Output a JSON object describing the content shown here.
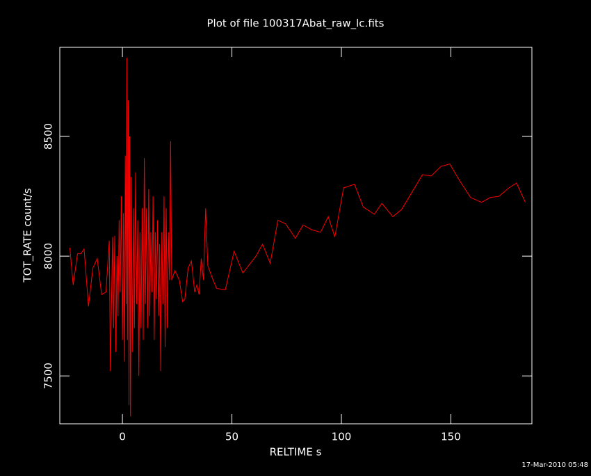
{
  "chart_data": {
    "type": "line",
    "title": "Plot of file 100317Abat_raw_lc.fits",
    "x_label": "RELTIME  s",
    "y_label": "TOT_RATE  count/s",
    "footer": "17-Mar-2010 05:48",
    "background": "#000000",
    "axis_color": "#ffffff",
    "xlim": [
      -28.6,
      187
    ],
    "ylim": [
      7300,
      8872
    ],
    "xticks": [
      0,
      50,
      100,
      150
    ],
    "yticks": [
      7500,
      8000,
      8500
    ],
    "series": [
      {
        "color": "#ff0000",
        "x": [
          -24,
          -22.5,
          -20.5,
          -19,
          -17.5,
          -15.5,
          -13.5,
          -11.5,
          -9.5,
          -7.5,
          -6,
          -5.5,
          -4.5,
          -4,
          -3.5,
          -3,
          -2.5,
          -2,
          -1.5,
          -1,
          -0.5,
          0,
          0.5,
          1,
          1.3,
          1.7,
          2,
          2.3,
          2.7,
          3,
          3.3,
          3.7,
          4,
          4.5,
          5,
          5.5,
          6,
          6.5,
          7,
          7.5,
          8,
          8.5,
          9,
          9.5,
          10,
          10.5,
          11,
          11.5,
          12,
          12.5,
          13,
          13.5,
          14,
          14.5,
          15,
          15.5,
          16,
          16.5,
          17,
          17.5,
          18,
          18.5,
          19,
          19.5,
          20,
          20.5,
          21,
          21.5,
          22,
          22.5,
          24,
          26,
          27.5,
          28.5,
          30,
          31.5,
          33,
          34,
          35,
          36,
          37,
          38,
          39,
          41,
          43,
          47,
          51,
          55,
          61,
          64,
          67.5,
          71,
          74.5,
          79,
          82.5,
          86.5,
          90.5,
          94,
          97,
          101,
          106,
          110,
          115,
          118.5,
          123.5,
          127.5,
          137,
          141,
          145.5,
          149.5,
          154,
          159,
          164,
          168,
          172,
          176.5,
          180,
          184
        ],
        "values": [
          8035,
          7880,
          8010,
          8010,
          8030,
          7790,
          7950,
          7990,
          7840,
          7850,
          8065,
          7520,
          8080,
          7700,
          8085,
          7600,
          8000,
          7750,
          8150,
          7850,
          8250,
          7650,
          8180,
          7560,
          8420,
          7800,
          8828,
          7650,
          8650,
          7378,
          8500,
          7331,
          8330,
          7600,
          8200,
          7700,
          8350,
          7800,
          8150,
          7500,
          8100,
          7700,
          8200,
          7650,
          8410,
          7800,
          8200,
          7700,
          8280,
          7750,
          8100,
          7850,
          8250,
          7650,
          8100,
          7820,
          8150,
          7750,
          8050,
          7520,
          8100,
          7800,
          8250,
          7620,
          8200,
          7700,
          8100,
          7900,
          8480,
          7900,
          7940,
          7900,
          7810,
          7820,
          7950,
          7980,
          7850,
          7880,
          7840,
          7990,
          7900,
          8200,
          7960,
          7910,
          7865,
          7860,
          8020,
          7930,
          8000,
          8050,
          7970,
          8150,
          8135,
          8075,
          8130,
          8110,
          8100,
          8165,
          8080,
          8285,
          8300,
          8205,
          8175,
          8220,
          8165,
          8195,
          8340,
          8335,
          8375,
          8385,
          8315,
          8245,
          8225,
          8245,
          8250,
          8285,
          8305,
          8225
        ]
      }
    ]
  }
}
